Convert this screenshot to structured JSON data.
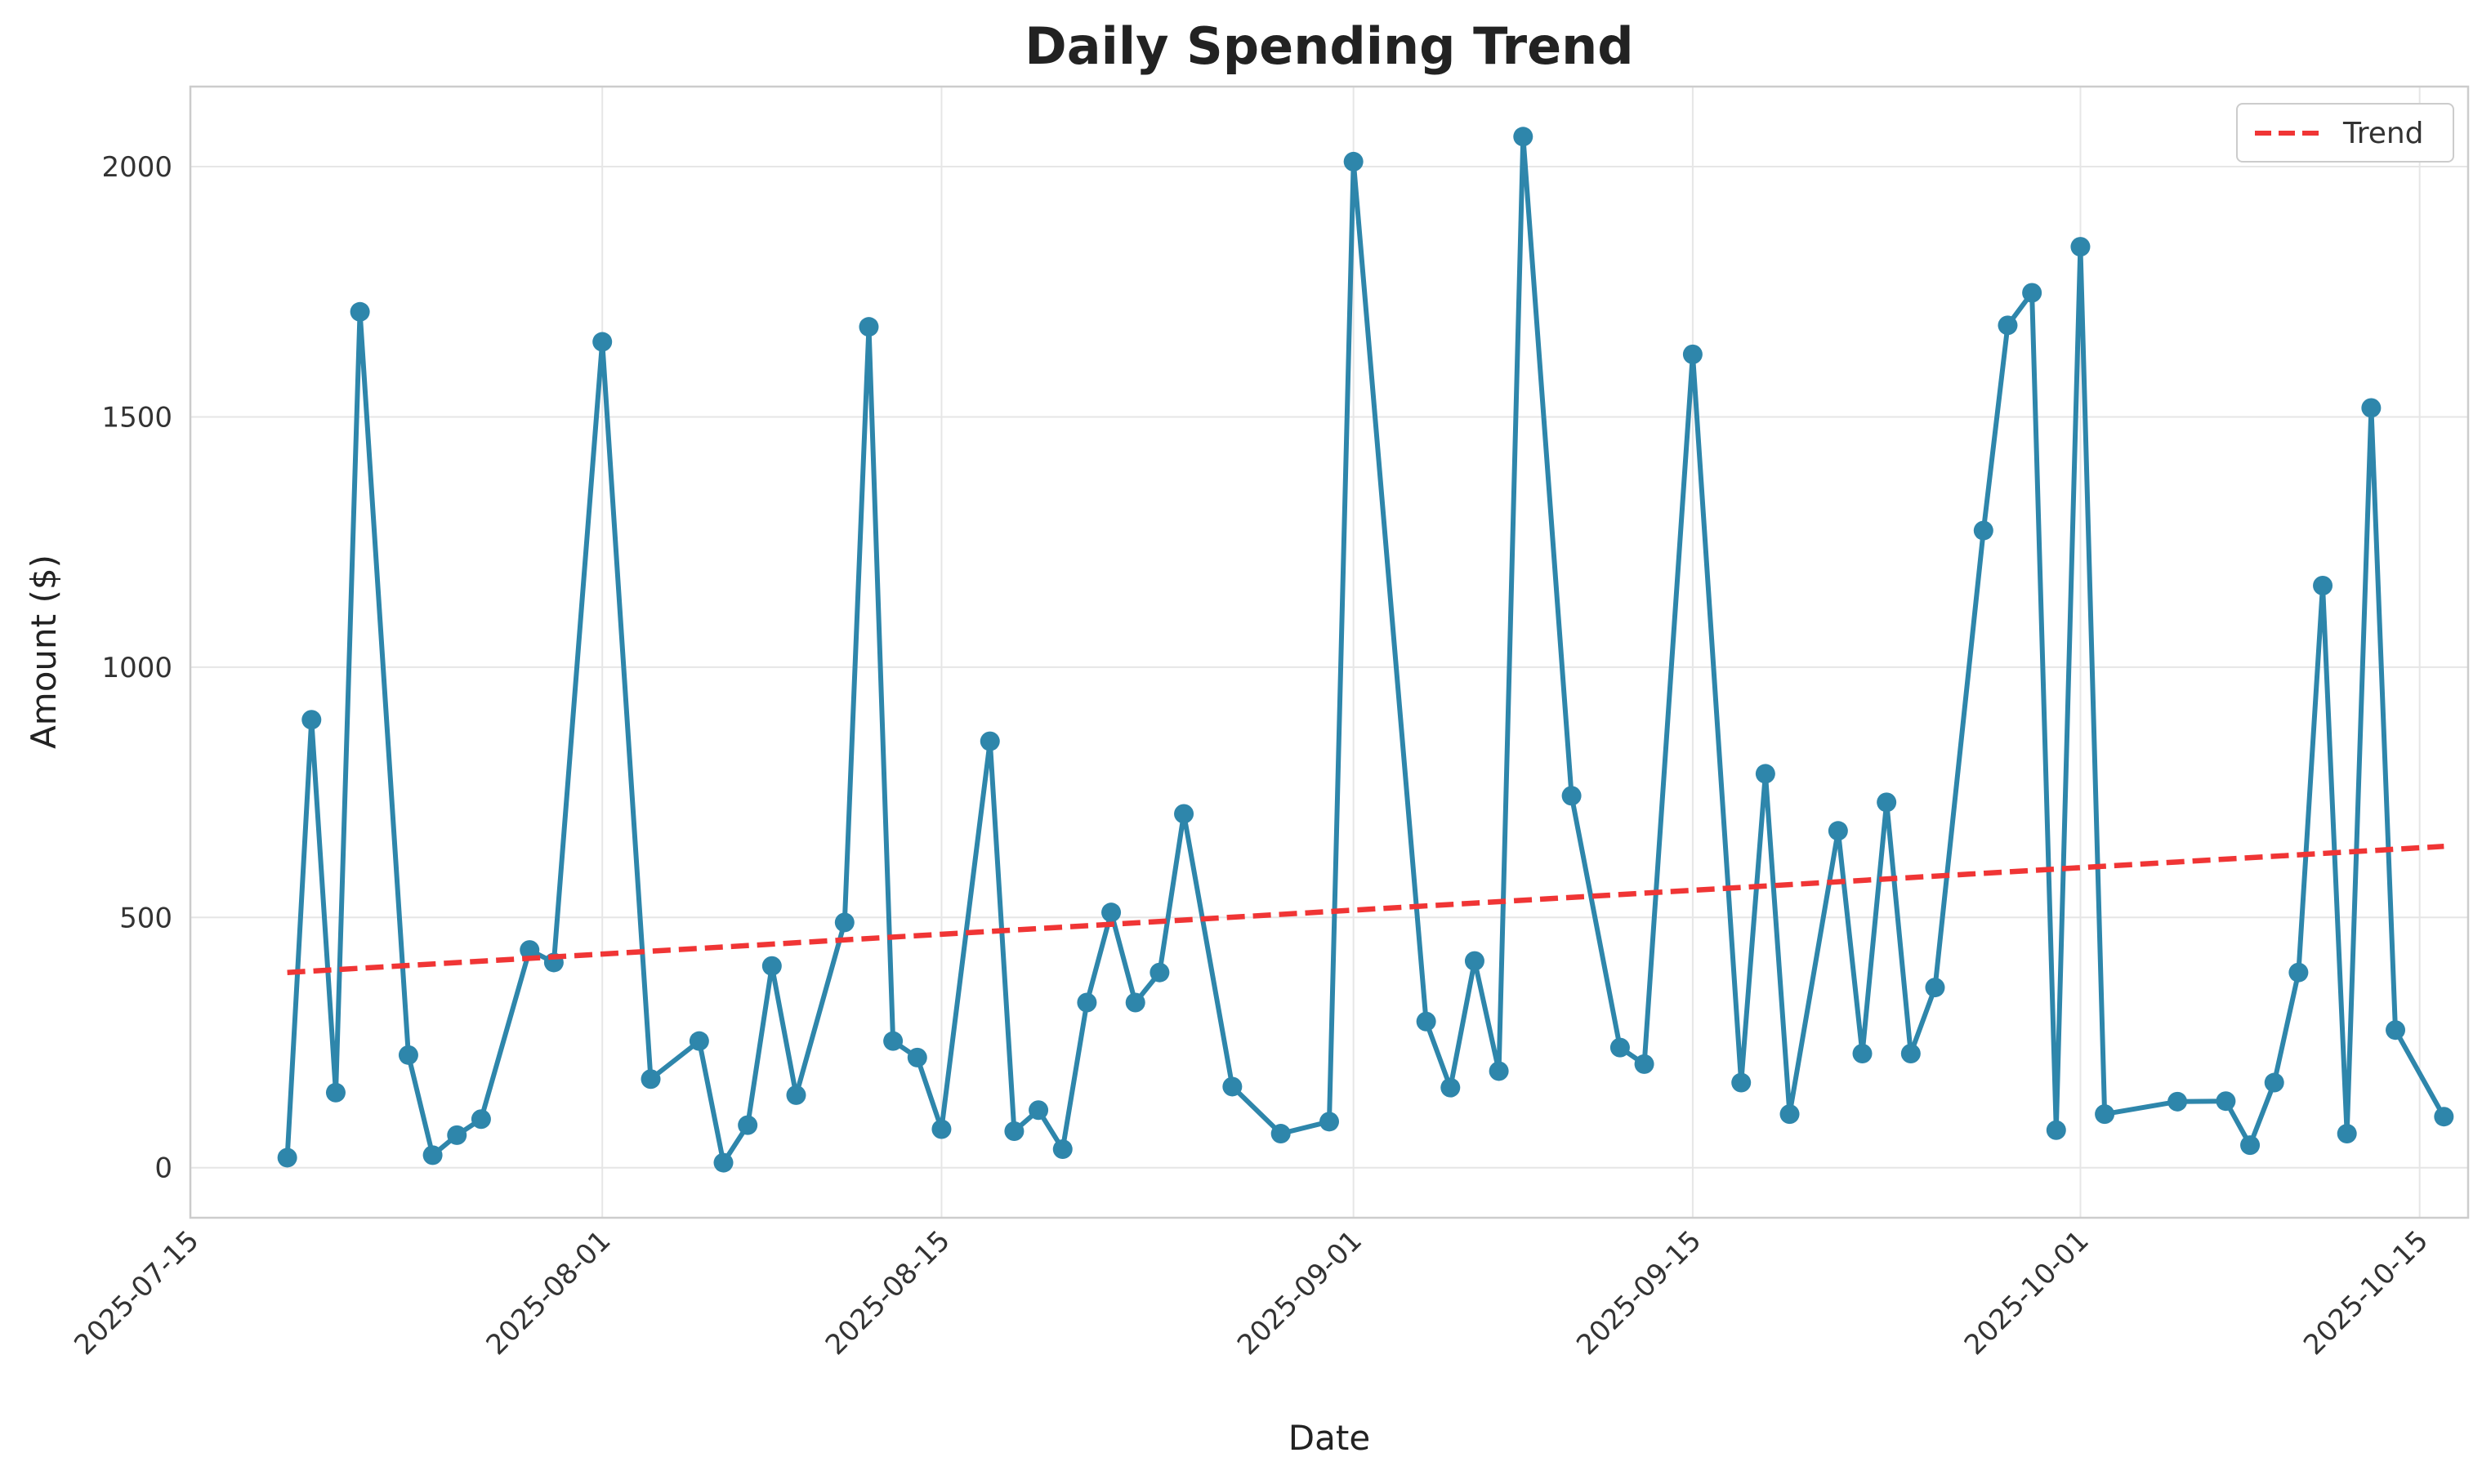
{
  "chart_data": {
    "type": "line",
    "title": "Daily Spending Trend",
    "xlabel": "Date",
    "ylabel": "Amount ($)",
    "x_type": "date",
    "xlim": [
      "2025-07-15",
      "2025-10-17"
    ],
    "ylim": [
      -100,
      2160
    ],
    "x_ticks": [
      "2025-07-15",
      "2025-08-01",
      "2025-08-15",
      "2025-09-01",
      "2025-09-15",
      "2025-10-01",
      "2025-10-15"
    ],
    "y_ticks": [
      0,
      500,
      1000,
      1500,
      2000
    ],
    "grid": true,
    "legend": {
      "position": "top-right",
      "entries": [
        "Trend"
      ]
    },
    "colors": {
      "series": "#2e86ab",
      "trend": "#f03535",
      "grid": "#e6e6e6",
      "frame": "#cccccc"
    },
    "series": [
      {
        "points": [
          [
            "2025-07-19",
            20
          ],
          [
            "2025-07-20",
            895
          ],
          [
            "2025-07-21",
            150
          ],
          [
            "2025-07-22",
            1710
          ],
          [
            "2025-07-24",
            225
          ],
          [
            "2025-07-25",
            25
          ],
          [
            "2025-07-26",
            65
          ],
          [
            "2025-07-27",
            97
          ],
          [
            "2025-07-29",
            435
          ],
          [
            "2025-07-30",
            410
          ],
          [
            "2025-08-01",
            1650
          ],
          [
            "2025-08-03",
            177
          ],
          [
            "2025-08-05",
            253
          ],
          [
            "2025-08-06",
            10
          ],
          [
            "2025-08-07",
            85
          ],
          [
            "2025-08-08",
            403
          ],
          [
            "2025-08-09",
            145
          ],
          [
            "2025-08-11",
            490
          ],
          [
            "2025-08-12",
            1680
          ],
          [
            "2025-08-13",
            253
          ],
          [
            "2025-08-14",
            220
          ],
          [
            "2025-08-15",
            77
          ],
          [
            "2025-08-17",
            852
          ],
          [
            "2025-08-18",
            73
          ],
          [
            "2025-08-19",
            115
          ],
          [
            "2025-08-20",
            37
          ],
          [
            "2025-08-21",
            330
          ],
          [
            "2025-08-22",
            510
          ],
          [
            "2025-08-23",
            330
          ],
          [
            "2025-08-24",
            390
          ],
          [
            "2025-08-25",
            707
          ],
          [
            "2025-08-27",
            162
          ],
          [
            "2025-08-29",
            68
          ],
          [
            "2025-08-31",
            92
          ],
          [
            "2025-09-01",
            2010
          ],
          [
            "2025-09-04",
            292
          ],
          [
            "2025-09-05",
            160
          ],
          [
            "2025-09-06",
            413
          ],
          [
            "2025-09-07",
            193
          ],
          [
            "2025-09-08",
            2060
          ],
          [
            "2025-09-10",
            743
          ],
          [
            "2025-09-12",
            240
          ],
          [
            "2025-09-13",
            207
          ],
          [
            "2025-09-15",
            1625
          ],
          [
            "2025-09-17",
            170
          ],
          [
            "2025-09-18",
            787
          ],
          [
            "2025-09-19",
            107
          ],
          [
            "2025-09-21",
            673
          ],
          [
            "2025-09-22",
            228
          ],
          [
            "2025-09-23",
            730
          ],
          [
            "2025-09-24",
            228
          ],
          [
            "2025-09-25",
            360
          ],
          [
            "2025-09-27",
            1273
          ],
          [
            "2025-09-28",
            1683
          ],
          [
            "2025-09-29",
            1748
          ],
          [
            "2025-09-30",
            75
          ],
          [
            "2025-10-01",
            1840
          ],
          [
            "2025-10-02",
            107
          ],
          [
            "2025-10-05",
            132
          ],
          [
            "2025-10-07",
            133
          ],
          [
            "2025-10-08",
            45
          ],
          [
            "2025-10-09",
            170
          ],
          [
            "2025-10-10",
            390
          ],
          [
            "2025-10-11",
            1163
          ],
          [
            "2025-10-12",
            68
          ],
          [
            "2025-10-13",
            1518
          ],
          [
            "2025-10-14",
            275
          ],
          [
            "2025-10-16",
            102
          ]
        ]
      },
      {
        "name": "Trend",
        "style": "dashed",
        "points": [
          [
            "2025-07-19",
            390
          ],
          [
            "2025-10-16",
            642
          ]
        ]
      }
    ]
  }
}
